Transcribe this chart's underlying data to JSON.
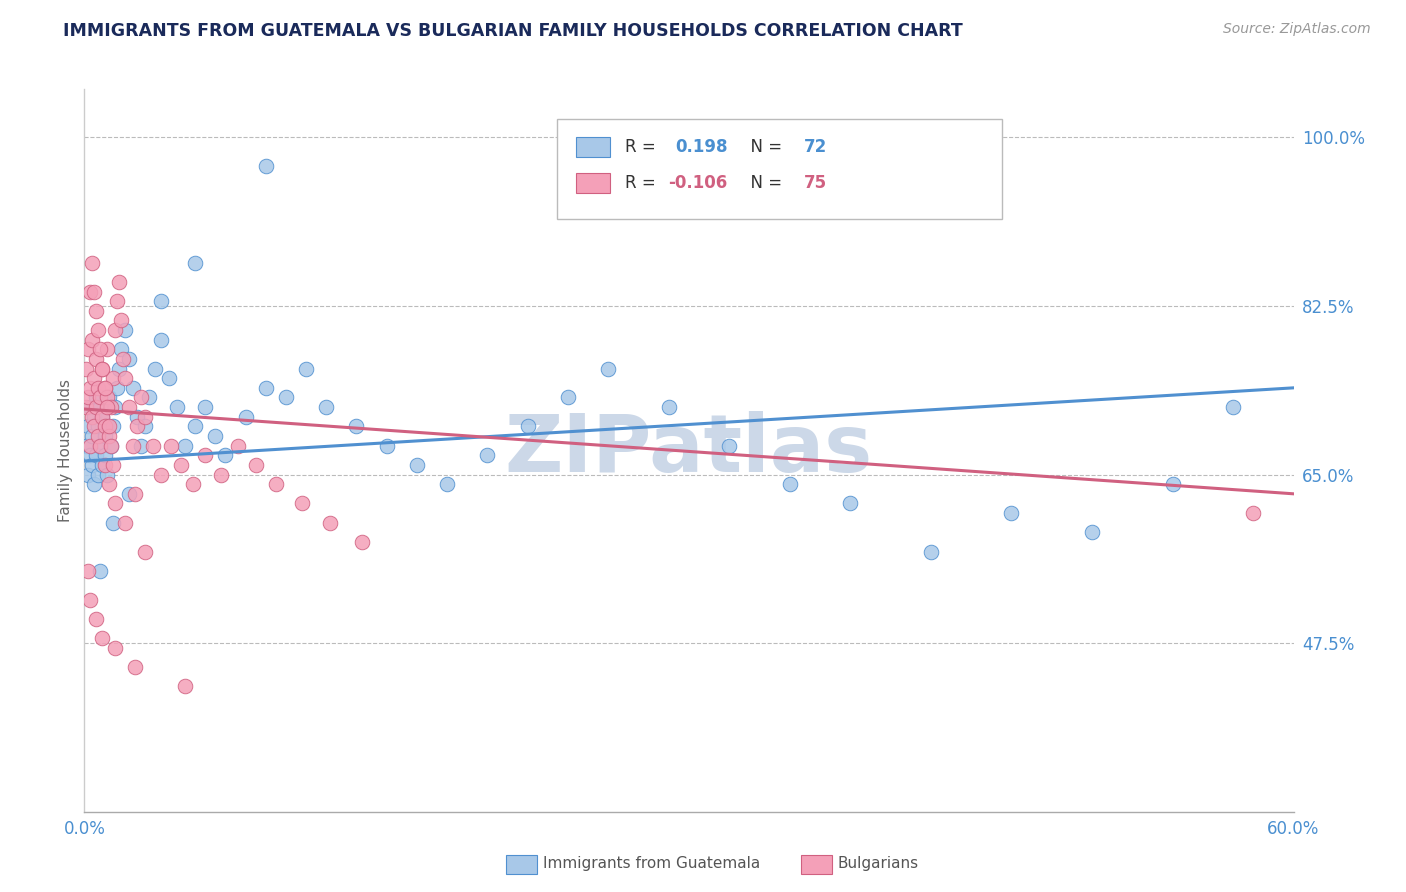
{
  "title": "IMMIGRANTS FROM GUATEMALA VS BULGARIAN FAMILY HOUSEHOLDS CORRELATION CHART",
  "source": "Source: ZipAtlas.com",
  "ylabel": "Family Households",
  "ytick_labels": [
    "100.0%",
    "82.5%",
    "65.0%",
    "47.5%"
  ],
  "ytick_values": [
    1.0,
    0.825,
    0.65,
    0.475
  ],
  "xlim": [
    0.0,
    0.6
  ],
  "ylim": [
    0.3,
    1.05
  ],
  "color_blue": "#a8c8e8",
  "color_pink": "#f4a0b8",
  "line_blue": "#5090d0",
  "line_pink": "#d06080",
  "title_color": "#1a2a5a",
  "source_color": "#999999",
  "axis_label_color": "#4a8fd0",
  "watermark_color": "#ccd8e8",
  "legend_label1": "Immigrants from Guatemala",
  "legend_label2": "Bulgarians",
  "blue_trend_x": [
    0.0,
    0.6
  ],
  "blue_trend_y": [
    0.664,
    0.74
  ],
  "pink_trend_x": [
    0.0,
    0.6
  ],
  "pink_trend_y": [
    0.718,
    0.63
  ],
  "blue_x": [
    0.001,
    0.002,
    0.002,
    0.003,
    0.003,
    0.004,
    0.004,
    0.005,
    0.005,
    0.006,
    0.006,
    0.007,
    0.007,
    0.008,
    0.008,
    0.009,
    0.009,
    0.01,
    0.01,
    0.011,
    0.011,
    0.012,
    0.013,
    0.014,
    0.015,
    0.016,
    0.017,
    0.018,
    0.02,
    0.022,
    0.024,
    0.026,
    0.028,
    0.03,
    0.032,
    0.035,
    0.038,
    0.042,
    0.046,
    0.05,
    0.055,
    0.06,
    0.065,
    0.07,
    0.08,
    0.09,
    0.1,
    0.11,
    0.12,
    0.135,
    0.15,
    0.165,
    0.18,
    0.2,
    0.22,
    0.24,
    0.26,
    0.29,
    0.32,
    0.35,
    0.38,
    0.42,
    0.46,
    0.5,
    0.54,
    0.57,
    0.008,
    0.014,
    0.022,
    0.038,
    0.055,
    0.09
  ],
  "blue_y": [
    0.68,
    0.7,
    0.65,
    0.72,
    0.67,
    0.69,
    0.66,
    0.71,
    0.64,
    0.73,
    0.67,
    0.7,
    0.65,
    0.72,
    0.68,
    0.66,
    0.71,
    0.69,
    0.67,
    0.7,
    0.65,
    0.73,
    0.68,
    0.7,
    0.72,
    0.74,
    0.76,
    0.78,
    0.8,
    0.77,
    0.74,
    0.71,
    0.68,
    0.7,
    0.73,
    0.76,
    0.79,
    0.75,
    0.72,
    0.68,
    0.7,
    0.72,
    0.69,
    0.67,
    0.71,
    0.74,
    0.73,
    0.76,
    0.72,
    0.7,
    0.68,
    0.66,
    0.64,
    0.67,
    0.7,
    0.73,
    0.76,
    0.72,
    0.68,
    0.64,
    0.62,
    0.57,
    0.61,
    0.59,
    0.64,
    0.72,
    0.55,
    0.6,
    0.63,
    0.83,
    0.87,
    0.97
  ],
  "pink_x": [
    0.001,
    0.001,
    0.002,
    0.002,
    0.003,
    0.003,
    0.004,
    0.004,
    0.005,
    0.005,
    0.006,
    0.006,
    0.007,
    0.007,
    0.008,
    0.008,
    0.009,
    0.009,
    0.01,
    0.01,
    0.011,
    0.011,
    0.012,
    0.013,
    0.014,
    0.015,
    0.016,
    0.017,
    0.018,
    0.019,
    0.02,
    0.022,
    0.024,
    0.026,
    0.028,
    0.03,
    0.034,
    0.038,
    0.043,
    0.048,
    0.054,
    0.06,
    0.068,
    0.076,
    0.085,
    0.095,
    0.108,
    0.122,
    0.138,
    0.01,
    0.012,
    0.015,
    0.02,
    0.025,
    0.03,
    0.003,
    0.004,
    0.005,
    0.006,
    0.007,
    0.008,
    0.009,
    0.01,
    0.011,
    0.012,
    0.013,
    0.014,
    0.002,
    0.003,
    0.006,
    0.009,
    0.015,
    0.025,
    0.05,
    0.58
  ],
  "pink_y": [
    0.72,
    0.76,
    0.73,
    0.78,
    0.68,
    0.74,
    0.71,
    0.79,
    0.75,
    0.7,
    0.77,
    0.72,
    0.74,
    0.69,
    0.73,
    0.68,
    0.76,
    0.71,
    0.74,
    0.7,
    0.78,
    0.73,
    0.69,
    0.72,
    0.75,
    0.8,
    0.83,
    0.85,
    0.81,
    0.77,
    0.75,
    0.72,
    0.68,
    0.7,
    0.73,
    0.71,
    0.68,
    0.65,
    0.68,
    0.66,
    0.64,
    0.67,
    0.65,
    0.68,
    0.66,
    0.64,
    0.62,
    0.6,
    0.58,
    0.66,
    0.64,
    0.62,
    0.6,
    0.63,
    0.57,
    0.84,
    0.87,
    0.84,
    0.82,
    0.8,
    0.78,
    0.76,
    0.74,
    0.72,
    0.7,
    0.68,
    0.66,
    0.55,
    0.52,
    0.5,
    0.48,
    0.47,
    0.45,
    0.43,
    0.61
  ]
}
